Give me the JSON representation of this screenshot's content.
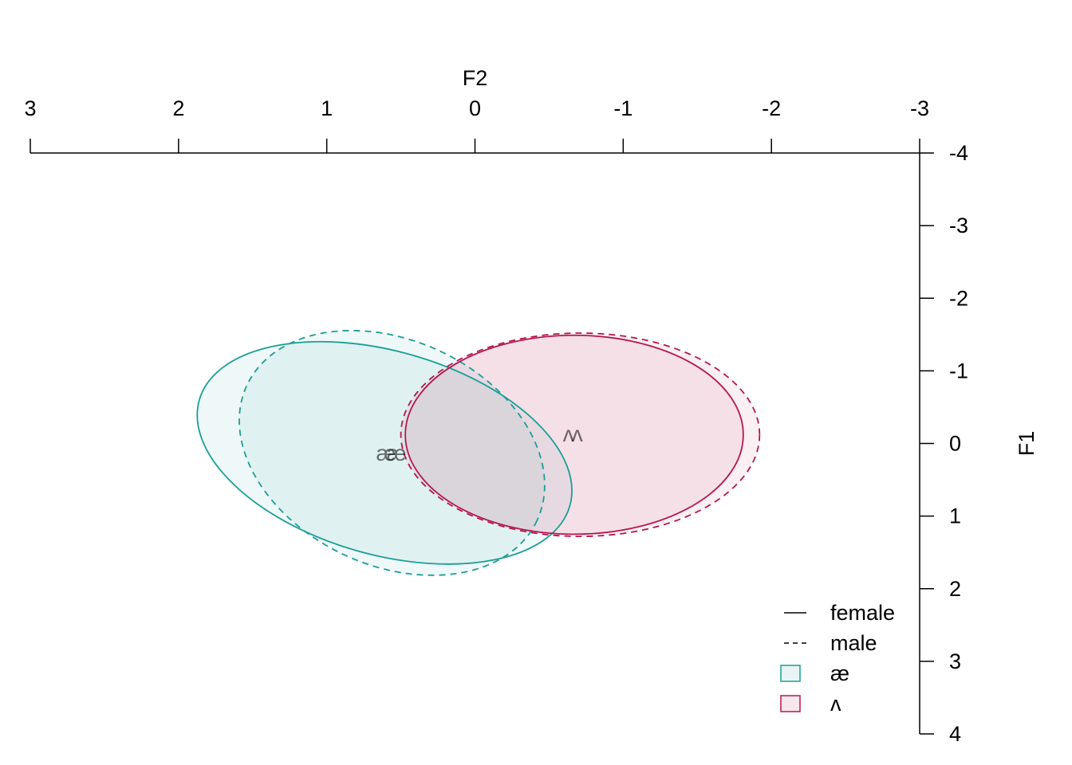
{
  "chart_data": {
    "type": "vowel-ellipse",
    "x_axis": {
      "label": "F2",
      "position": "top",
      "reversed": true,
      "range": [
        3,
        -3
      ],
      "ticks": [
        3,
        2,
        1,
        0,
        -1,
        -2,
        -3
      ],
      "tick_labels": [
        "3",
        "2",
        "1",
        "0",
        "-1",
        "-2",
        "-3"
      ]
    },
    "y_axis": {
      "label": "F1",
      "position": "right",
      "reversed": true,
      "range": [
        -4,
        4
      ],
      "ticks": [
        -4,
        -3,
        -2,
        -1,
        0,
        1,
        2,
        3,
        4
      ],
      "tick_labels": [
        "-4",
        "-3",
        "-2",
        "-1",
        "0",
        "1",
        "2",
        "3",
        "4"
      ]
    },
    "series": [
      {
        "name": "female",
        "vowel": "æ",
        "color": "#1a9e96",
        "linestyle": "solid",
        "center": [
          0.61,
          0.13
        ],
        "semi_axes": [
          1.3,
          1.4
        ],
        "rotation_deg": 16
      },
      {
        "name": "male",
        "vowel": "æ",
        "color": "#1a9e96",
        "linestyle": "dashed",
        "center": [
          0.56,
          0.13
        ],
        "semi_axes": [
          1.08,
          1.55
        ],
        "rotation_deg": 25
      },
      {
        "name": "female",
        "vowel": "ʌ",
        "color": "#b5164f",
        "linestyle": "solid",
        "center": [
          -0.67,
          -0.12
        ],
        "semi_axes": [
          1.14,
          1.37
        ],
        "rotation_deg": 0
      },
      {
        "name": "male",
        "vowel": "ʌ",
        "color": "#b5164f",
        "linestyle": "dashed",
        "center": [
          -0.71,
          -0.12
        ],
        "semi_axes": [
          1.21,
          1.4
        ],
        "rotation_deg": 0
      }
    ],
    "point_labels": [
      {
        "text": "æ",
        "color": "#1a9e96",
        "x": 0.6,
        "y": 0.13
      },
      {
        "text": "æ",
        "color": "#1a9e96",
        "x": 0.53,
        "y": 0.13
      },
      {
        "text": "ʌ",
        "color": "#b5164f",
        "x": -0.63,
        "y": -0.13
      },
      {
        "text": "ʌ",
        "color": "#b5164f",
        "x": -0.69,
        "y": -0.13
      }
    ],
    "legend": {
      "placement": "bottom-right",
      "line_items": [
        {
          "label": "female",
          "linestyle": "solid"
        },
        {
          "label": "male",
          "linestyle": "dashed"
        }
      ],
      "fill_items": [
        {
          "label": "æ",
          "color": "#1a9e96"
        },
        {
          "label": "ʌ",
          "color": "#b5164f"
        }
      ]
    }
  }
}
